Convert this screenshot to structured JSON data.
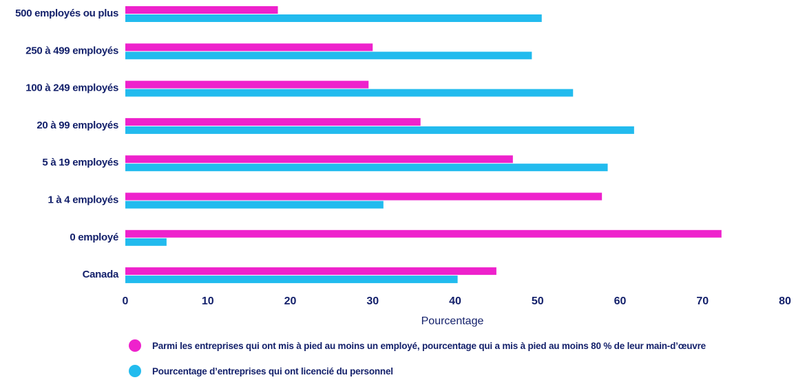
{
  "chart_data": {
    "type": "bar",
    "orientation": "horizontal",
    "categories": [
      "500 employés ou plus",
      "250 à 499 employés",
      "100 à 249 employés",
      "20 à 99 employés",
      "5 à 19 employés",
      "1 à 4 employés",
      "0 employé",
      "Canada"
    ],
    "series": [
      {
        "name": "Parmi les entreprises qui ont mis à pied au moins un employé, pourcentage qui a mis à pied au moins 80 % de leur main-d’œuvre",
        "color": "#ee22cc",
        "values": [
          18.5,
          30,
          29.5,
          35.8,
          47,
          57.8,
          72.3,
          45
        ]
      },
      {
        "name": "Pourcentage d’entreprises qui ont licencié du personnel",
        "color": "#22bbee",
        "values": [
          50.5,
          49.3,
          54.3,
          61.7,
          58.5,
          31.3,
          5,
          40.3
        ]
      }
    ],
    "xlabel": "Pourcentage",
    "ylabel": "",
    "xlim": [
      0,
      80
    ],
    "xticks": [
      "0",
      "10",
      "20",
      "30",
      "40",
      "50",
      "60",
      "70",
      "80"
    ],
    "grid": false,
    "legend": "bottom"
  }
}
